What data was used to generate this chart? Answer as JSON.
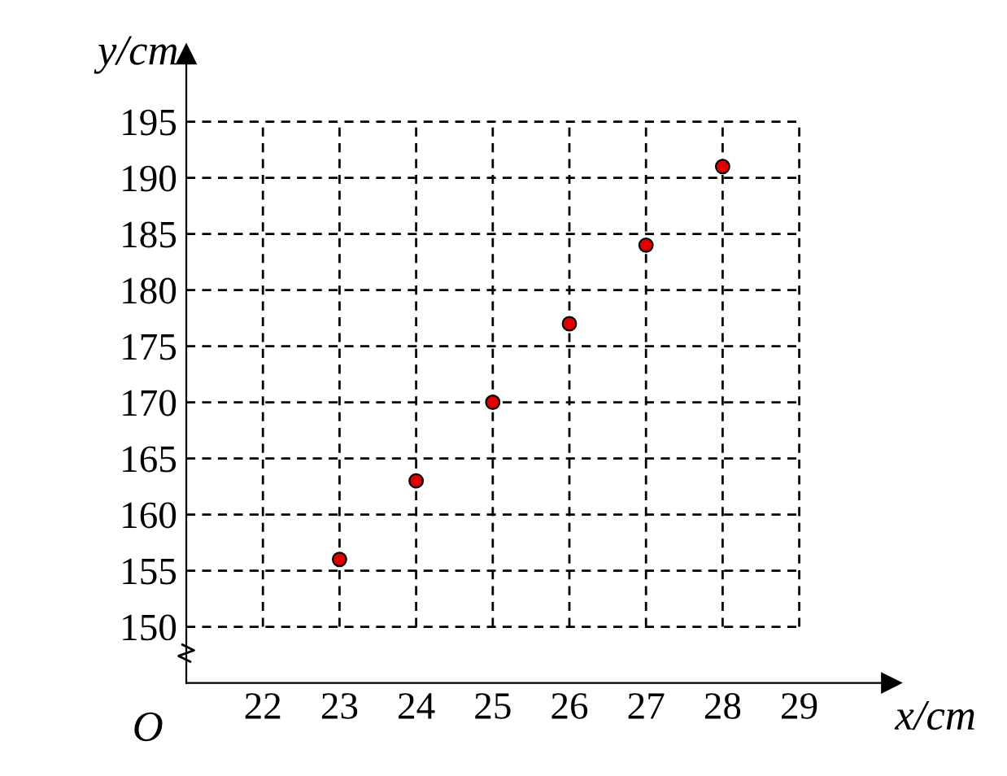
{
  "chart_data": {
    "type": "scatter",
    "xlabel": "x/cm",
    "ylabel": "y/cm",
    "x": [
      23,
      24,
      25,
      26,
      27,
      28
    ],
    "values": [
      156,
      163,
      170,
      177,
      184,
      191
    ],
    "color": "#e00000",
    "marker": "circle",
    "xlim": [
      21,
      30.2
    ],
    "ylim": [
      145,
      201
    ],
    "xticks": [
      22,
      23,
      24,
      25,
      26,
      27,
      28,
      29
    ],
    "yticks": [
      150,
      155,
      160,
      165,
      170,
      175,
      180,
      185,
      190,
      195
    ],
    "grid": true,
    "annotations": [
      "O"
    ]
  }
}
